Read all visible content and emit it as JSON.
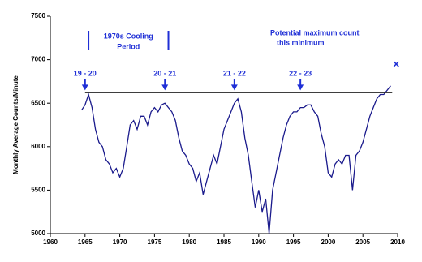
{
  "chart_data": {
    "type": "line",
    "y_label": "Monthly Average Counts/Minute",
    "x": [
      1964.5,
      1965,
      1965.5,
      1966,
      1966.5,
      1967,
      1967.5,
      1968,
      1968.5,
      1969,
      1969.5,
      1970,
      1970.5,
      1971,
      1971.5,
      1972,
      1972.5,
      1973,
      1973.5,
      1974,
      1974.5,
      1975,
      1975.5,
      1976,
      1976.5,
      1977,
      1977.5,
      1978,
      1978.5,
      1979,
      1979.5,
      1980,
      1980.5,
      1981,
      1981.5,
      1982,
      1982.5,
      1983,
      1983.5,
      1984,
      1984.5,
      1985,
      1985.5,
      1986,
      1986.5,
      1987,
      1987.5,
      1988,
      1988.5,
      1989,
      1989.5,
      1990,
      1990.5,
      1991,
      1991.5,
      1992,
      1992.5,
      1993,
      1993.5,
      1994,
      1994.5,
      1995,
      1995.5,
      1996,
      1996.5,
      1997,
      1997.5,
      1998,
      1998.5,
      1999,
      1999.5,
      2000,
      2000.5,
      2001,
      2001.5,
      2002,
      2002.5,
      2003,
      2003.5,
      2004,
      2004.5,
      2005,
      2005.5,
      2006,
      2006.5,
      2007,
      2007.5,
      2008,
      2008.5,
      2009
    ],
    "series": [
      {
        "color": "#1a1a8c",
        "values": [
          6420,
          6480,
          6600,
          6450,
          6200,
          6050,
          6000,
          5850,
          5800,
          5700,
          5750,
          5650,
          5750,
          6000,
          6250,
          6300,
          6200,
          6350,
          6350,
          6250,
          6400,
          6450,
          6400,
          6480,
          6500,
          6450,
          6400,
          6300,
          6100,
          5950,
          5900,
          5800,
          5750,
          5600,
          5700,
          5450,
          5600,
          5750,
          5900,
          5800,
          6000,
          6200,
          6300,
          6400,
          6500,
          6550,
          6400,
          6100,
          5900,
          5600,
          5300,
          5500,
          5250,
          5400,
          5000,
          5500,
          5700,
          5900,
          6100,
          6250,
          6350,
          6400,
          6400,
          6450,
          6450,
          6480,
          6480,
          6400,
          6350,
          6150,
          6000,
          5700,
          5650,
          5800,
          5850,
          5800,
          5900,
          5900,
          5500,
          5900,
          5950,
          6050,
          6200,
          6350,
          6450,
          6550,
          6600,
          6600,
          6650,
          6700
        ]
      }
    ],
    "xlim": [
      1960,
      2010
    ],
    "ylim": [
      5000,
      7500
    ],
    "xticks": [
      1960,
      1965,
      1970,
      1975,
      1980,
      1985,
      1990,
      1995,
      2000,
      2005,
      2010
    ],
    "yticks": [
      5000,
      5500,
      6000,
      6500,
      7000,
      7500
    ],
    "reference_level": 6620,
    "cycle_markers": [
      {
        "label": "19 - 20",
        "x": 1965
      },
      {
        "label": "20 - 21",
        "x": 1976.5
      },
      {
        "label": "21 - 22",
        "x": 1986.5
      },
      {
        "label": "22 - 23",
        "x": 1996
      }
    ],
    "period": {
      "lines": [
        "1970s Cooling",
        "Period"
      ],
      "x": [
        1965.5,
        1977
      ]
    },
    "potential_max": {
      "lines": [
        "Potential maximum count",
        "this minimum"
      ],
      "x": 2009.8,
      "y": 6950
    }
  }
}
